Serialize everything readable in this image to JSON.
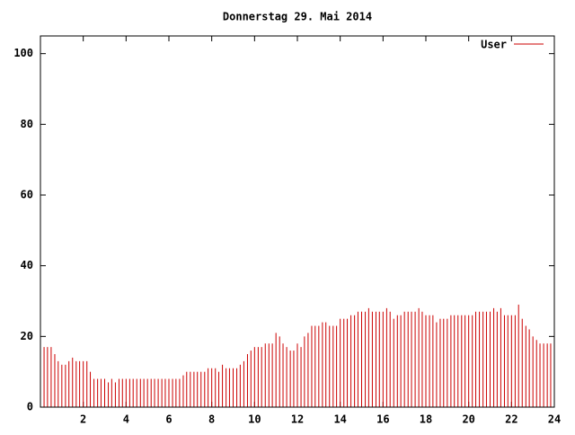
{
  "chart_data": {
    "type": "impulses",
    "title": "Donnerstag 29. Mai 2014",
    "x": [
      0,
      0.17,
      0.33,
      0.5,
      0.67,
      0.83,
      1,
      1.17,
      1.33,
      1.5,
      1.67,
      1.83,
      2,
      2.17,
      2.33,
      2.5,
      2.67,
      2.83,
      3,
      3.17,
      3.33,
      3.5,
      3.67,
      3.83,
      4,
      4.17,
      4.33,
      4.5,
      4.67,
      4.83,
      5,
      5.17,
      5.33,
      5.5,
      5.67,
      5.83,
      6,
      6.17,
      6.33,
      6.5,
      6.67,
      6.83,
      7,
      7.17,
      7.33,
      7.5,
      7.67,
      7.83,
      8,
      8.17,
      8.33,
      8.5,
      8.67,
      8.83,
      9,
      9.17,
      9.33,
      9.5,
      9.67,
      9.83,
      10,
      10.17,
      10.33,
      10.5,
      10.67,
      10.83,
      11,
      11.17,
      11.33,
      11.5,
      11.67,
      11.83,
      12,
      12.17,
      12.33,
      12.5,
      12.67,
      12.83,
      13,
      13.17,
      13.33,
      13.5,
      13.67,
      13.83,
      14,
      14.17,
      14.33,
      14.5,
      14.67,
      14.83,
      15,
      15.17,
      15.33,
      15.5,
      15.67,
      15.83,
      16,
      16.17,
      16.33,
      16.5,
      16.67,
      16.83,
      17,
      17.17,
      17.33,
      17.5,
      17.67,
      17.83,
      18,
      18.17,
      18.33,
      18.5,
      18.67,
      18.83,
      19,
      19.17,
      19.33,
      19.5,
      19.67,
      19.83,
      20,
      20.17,
      20.33,
      20.5,
      20.67,
      20.83,
      21,
      21.17,
      21.33,
      21.5,
      21.67,
      21.83,
      22,
      22.17,
      22.33,
      22.5,
      22.67,
      22.83,
      23,
      23.17,
      23.33,
      23.5,
      23.67,
      23.83,
      24
    ],
    "series": [
      {
        "name": "User",
        "color": "#cc0000",
        "values": [
          17,
          17,
          17,
          17,
          15,
          13,
          12,
          12,
          13,
          14,
          13,
          13,
          13,
          13,
          10,
          8,
          8,
          8,
          8,
          7,
          8,
          7,
          8,
          8,
          8,
          8,
          8,
          8,
          8,
          8,
          8,
          8,
          8,
          8,
          8,
          8,
          8,
          8,
          8,
          8,
          9,
          10,
          10,
          10,
          10,
          10,
          10,
          11,
          11,
          11,
          10,
          12,
          11,
          11,
          11,
          11,
          12,
          13,
          15,
          16,
          17,
          17,
          17,
          18,
          18,
          18,
          21,
          20,
          18,
          17,
          16,
          16,
          18,
          17,
          20,
          21,
          23,
          23,
          23,
          24,
          24,
          23,
          23,
          23,
          25,
          25,
          25,
          26,
          26,
          27,
          27,
          27,
          28,
          27,
          27,
          27,
          27,
          28,
          27,
          25,
          26,
          26,
          27,
          27,
          27,
          27,
          28,
          27,
          26,
          26,
          26,
          24,
          25,
          25,
          25,
          26,
          26,
          26,
          26,
          26,
          26,
          26,
          27,
          27,
          27,
          27,
          27,
          28,
          27,
          28,
          26,
          26,
          26,
          26,
          29,
          25,
          23,
          22,
          20,
          19,
          18,
          18,
          18,
          18,
          17
        ]
      }
    ],
    "xlim": [
      0,
      24
    ],
    "xticks": [
      2,
      4,
      6,
      8,
      10,
      12,
      14,
      16,
      18,
      20,
      22,
      24
    ],
    "ylim": [
      0,
      105
    ],
    "yticks": [
      0,
      20,
      40,
      60,
      80,
      100
    ],
    "legend": "top-right"
  }
}
